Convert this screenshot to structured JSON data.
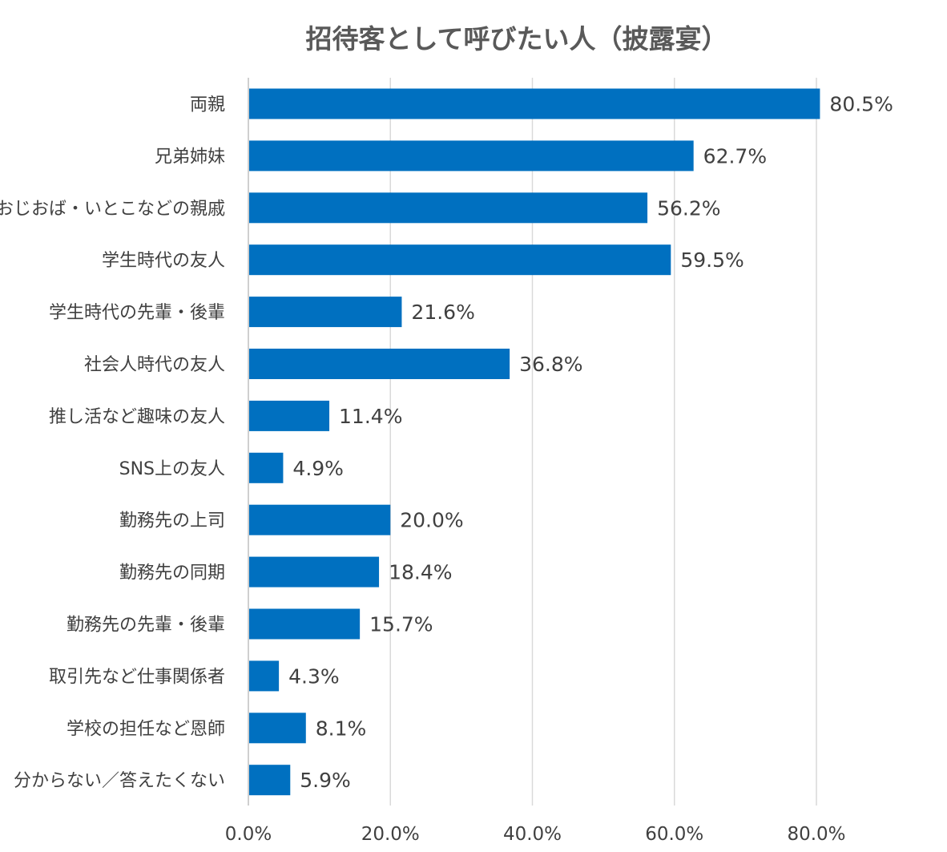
{
  "chart_data": {
    "type": "bar",
    "orientation": "horizontal",
    "title": "招待客として呼びたい人（披露宴）",
    "categories": [
      "両親",
      "兄弟姉妹",
      "おじおば・いとこなどの親戚",
      "学生時代の友人",
      "学生時代の先輩・後輩",
      "社会人時代の友人",
      "推し活など趣味の友人",
      "SNS上の友人",
      "勤務先の上司",
      "勤務先の同期",
      "勤務先の先輩・後輩",
      "取引先など仕事関係者",
      "学校の担任など恩師",
      "分からない／答えたくない"
    ],
    "values": [
      80.5,
      62.7,
      56.2,
      59.5,
      21.6,
      36.8,
      11.4,
      4.9,
      20.0,
      18.4,
      15.7,
      4.3,
      8.1,
      5.9
    ],
    "data_labels": [
      "80.5%",
      "62.7%",
      "56.2%",
      "59.5%",
      "21.6%",
      "36.8%",
      "11.4%",
      "4.9%",
      "20.0%",
      "18.4%",
      "15.7%",
      "4.3%",
      "8.1%",
      "5.9%"
    ],
    "xlim": [
      0,
      80
    ],
    "x_ticks": [
      0,
      20,
      40,
      60,
      80
    ],
    "x_tick_labels": [
      "0.0%",
      "20.0%",
      "40.0%",
      "60.0%",
      "80.0%"
    ],
    "xlabel": "",
    "ylabel": "",
    "grid": "vertical",
    "legend": "none",
    "colors": {
      "bar": "#0070C0",
      "grid": "#D9D9D9",
      "axis": "#BFBFBF",
      "text": "#404040",
      "title": "#595959"
    }
  }
}
